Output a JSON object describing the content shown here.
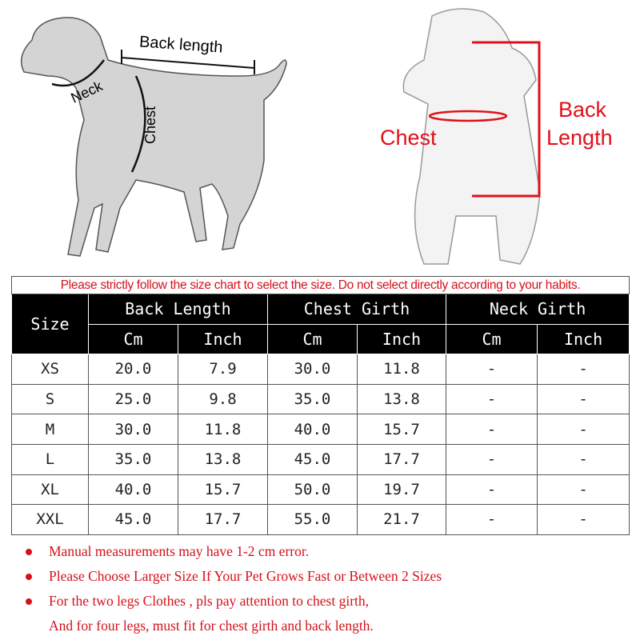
{
  "dog_diagram": {
    "back_length": "Back length",
    "neck": "Neck",
    "chest": "Chest"
  },
  "coat_diagram": {
    "chest": "Chest",
    "back_length_line1": "Back",
    "back_length_line2": "Length"
  },
  "table": {
    "notice": "Please strictly follow the size chart to select the size. Do not select directly according to your habits.",
    "size_header": "Size",
    "groups": [
      "Back Length",
      "Chest Girth",
      "Neck Girth"
    ],
    "units": [
      "Cm",
      "Inch",
      "Cm",
      "Inch",
      "Cm",
      "Inch"
    ],
    "rows": [
      [
        "XS",
        "20.0",
        "7.9",
        "30.0",
        "11.8",
        "-",
        "-"
      ],
      [
        "S",
        "25.0",
        "9.8",
        "35.0",
        "13.8",
        "-",
        "-"
      ],
      [
        "M",
        "30.0",
        "11.8",
        "40.0",
        "15.7",
        "-",
        "-"
      ],
      [
        "L",
        "35.0",
        "13.8",
        "45.0",
        "17.7",
        "-",
        "-"
      ],
      [
        "XL",
        "40.0",
        "15.7",
        "50.0",
        "19.7",
        "-",
        "-"
      ],
      [
        "XXL",
        "45.0",
        "17.7",
        "55.0",
        "21.7",
        "-",
        "-"
      ]
    ]
  },
  "notes": [
    "Manual measurements may have 1-2 cm error.",
    "Please Choose Larger Size If Your Pet Grows Fast or Between 2 Sizes",
    "For the two legs Clothes , pls pay attention to chest girth,",
    "And for four legs, must fit for chest girth and back length."
  ],
  "colors": {
    "accent_red": "#d6101a",
    "header_bg": "#000000",
    "dog_gray": "#d4d4d4"
  }
}
